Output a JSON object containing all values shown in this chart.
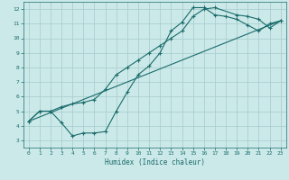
{
  "xlabel": "Humidex (Indice chaleur)",
  "xlim": [
    -0.5,
    23.5
  ],
  "ylim": [
    2.5,
    12.5
  ],
  "xticks": [
    0,
    1,
    2,
    3,
    4,
    5,
    6,
    7,
    8,
    9,
    10,
    11,
    12,
    13,
    14,
    15,
    16,
    17,
    18,
    19,
    20,
    21,
    22,
    23
  ],
  "yticks": [
    3,
    4,
    5,
    6,
    7,
    8,
    9,
    10,
    11,
    12
  ],
  "background_color": "#cce9e9",
  "grid_color": "#aacfcf",
  "line_color": "#1a6b6b",
  "line1_x": [
    0,
    1,
    2,
    3,
    4,
    5,
    6,
    7,
    8,
    9,
    10,
    11,
    12,
    13,
    14,
    15,
    16,
    17,
    18,
    19,
    20,
    21,
    22,
    23
  ],
  "line1_y": [
    4.3,
    5.0,
    5.0,
    4.2,
    3.3,
    3.5,
    3.5,
    3.6,
    5.0,
    6.3,
    7.5,
    8.1,
    9.0,
    10.5,
    11.1,
    12.1,
    12.1,
    11.6,
    11.5,
    11.3,
    10.9,
    10.5,
    11.0,
    11.2
  ],
  "line2_x": [
    0,
    1,
    2,
    3,
    4,
    5,
    6,
    7,
    8,
    9,
    10,
    11,
    12,
    13,
    14,
    15,
    16,
    17,
    19,
    20,
    21,
    22,
    23
  ],
  "line2_y": [
    4.3,
    5.0,
    5.0,
    5.3,
    5.5,
    5.6,
    5.8,
    6.5,
    7.5,
    8.0,
    8.5,
    9.0,
    9.5,
    10.0,
    10.5,
    11.5,
    12.0,
    12.1,
    11.6,
    11.5,
    11.3,
    10.7,
    11.2
  ],
  "line3_x": [
    0,
    23
  ],
  "line3_y": [
    4.3,
    11.2
  ]
}
